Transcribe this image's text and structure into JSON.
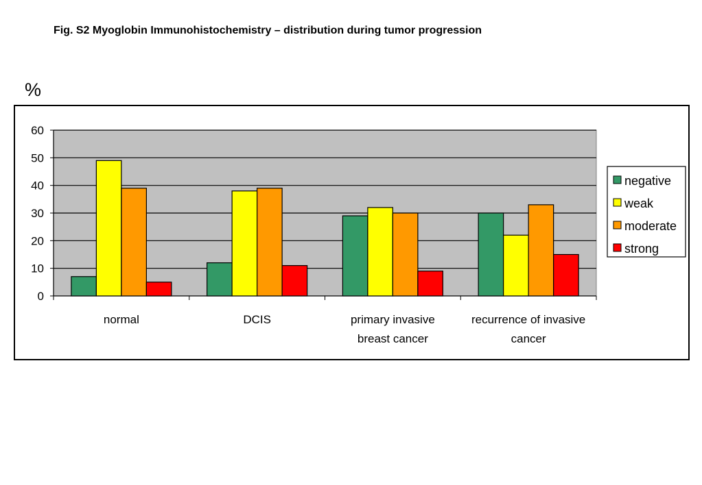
{
  "figure": {
    "title": "Fig. S2 Myoglobin Immunohistochemistry – distribution during tumor progression",
    "unit_label": "%"
  },
  "chart_data": {
    "type": "bar",
    "categories": [
      [
        "normal"
      ],
      [
        "DCIS"
      ],
      [
        "primary invasive",
        "breast cancer"
      ],
      [
        "recurrence of invasive",
        "cancer"
      ]
    ],
    "series": [
      {
        "name": "negative",
        "color": "#339966",
        "values": [
          7,
          12,
          29,
          30
        ]
      },
      {
        "name": "weak",
        "color": "#ffff00",
        "values": [
          49,
          38,
          32,
          22
        ]
      },
      {
        "name": "moderate",
        "color": "#ff9900",
        "values": [
          39,
          39,
          30,
          33
        ]
      },
      {
        "name": "strong",
        "color": "#ff0000",
        "values": [
          5,
          11,
          9,
          15
        ]
      }
    ],
    "yticks": [
      "0",
      "10",
      "20",
      "30",
      "40",
      "50",
      "60"
    ],
    "ylim": [
      0,
      60
    ],
    "plot_background": "#c0c0c0",
    "grid": true,
    "legend_position": "right"
  }
}
